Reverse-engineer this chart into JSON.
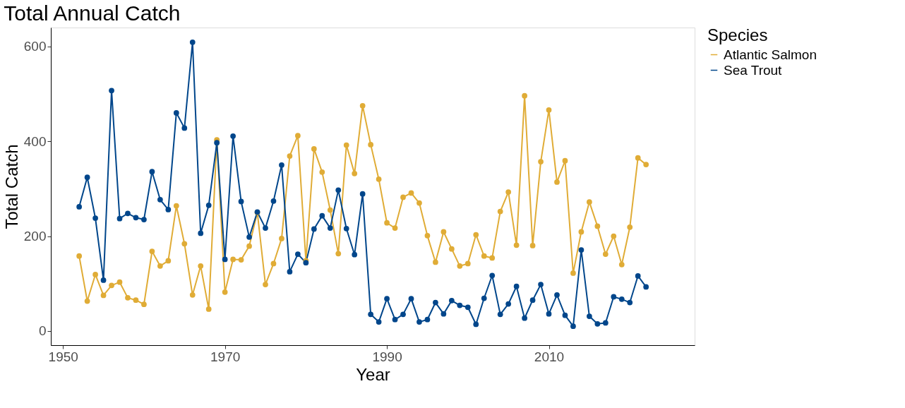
{
  "chart_data": {
    "type": "line",
    "title": "Total Annual Catch",
    "xlabel": "Year",
    "ylabel": "Total Catch",
    "legend_title": "Species",
    "legend": "right",
    "grid": false,
    "marker": "circle",
    "line_style": "solid",
    "x": [
      1952,
      1953,
      1954,
      1955,
      1956,
      1957,
      1958,
      1959,
      1960,
      1961,
      1962,
      1963,
      1964,
      1965,
      1966,
      1967,
      1968,
      1969,
      1970,
      1971,
      1972,
      1973,
      1974,
      1975,
      1976,
      1977,
      1978,
      1979,
      1980,
      1981,
      1982,
      1983,
      1984,
      1985,
      1986,
      1987,
      1988,
      1989,
      1990,
      1991,
      1992,
      1993,
      1994,
      1995,
      1996,
      1997,
      1998,
      1999,
      2000,
      2001,
      2002,
      2003,
      2004,
      2005,
      2006,
      2007,
      2008,
      2009,
      2010,
      2011,
      2012,
      2013,
      2014,
      2015,
      2016,
      2017,
      2018,
      2019,
      2020,
      2021,
      2022
    ],
    "xlim": [
      1948.5,
      2028
    ],
    "xticks": [
      1950,
      1970,
      1990,
      2010
    ],
    "ylim": [
      -30,
      640
    ],
    "yticks": [
      0,
      200,
      400,
      600
    ],
    "series": [
      {
        "name": "Atlantic Salmon",
        "color": "#e0ac36",
        "values": [
          158,
          63,
          119,
          75,
          96,
          103,
          70,
          65,
          56,
          168,
          137,
          148,
          264,
          184,
          76,
          137,
          46,
          403,
          82,
          151,
          150,
          179,
          250,
          98,
          142,
          195,
          369,
          412,
          148,
          384,
          335,
          255,
          163,
          392,
          332,
          475,
          393,
          320,
          228,
          217,
          282,
          291,
          270,
          201,
          145,
          209,
          173,
          137,
          142,
          203,
          158,
          154,
          252,
          293,
          181,
          496,
          180,
          357,
          466,
          314,
          359,
          122,
          209,
          272,
          221,
          162,
          200,
          140,
          219,
          365,
          351
        ]
      },
      {
        "name": "Sea Trout",
        "color": "#00468b",
        "values": [
          262,
          324,
          238,
          107,
          507,
          237,
          248,
          239,
          235,
          336,
          277,
          256,
          460,
          428,
          609,
          206,
          265,
          397,
          151,
          411,
          273,
          198,
          251,
          217,
          274,
          350,
          125,
          162,
          144,
          215,
          243,
          217,
          297,
          216,
          161,
          289,
          35,
          19,
          68,
          24,
          35,
          68,
          19,
          24,
          60,
          36,
          64,
          54,
          50,
          14,
          69,
          117,
          35,
          57,
          94,
          27,
          65,
          98,
          36,
          76,
          33,
          10,
          171,
          31,
          15,
          17,
          72,
          67,
          60,
          116,
          93
        ]
      }
    ]
  }
}
